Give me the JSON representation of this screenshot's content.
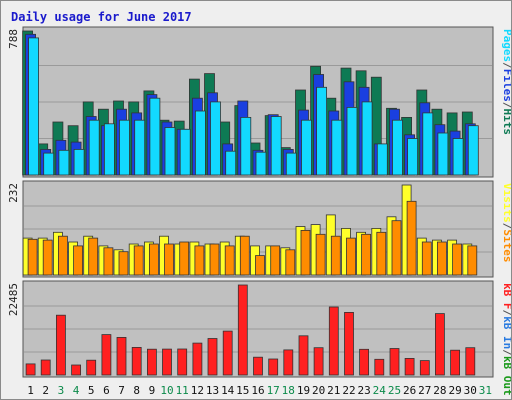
{
  "title": "Daily usage for June 2017",
  "colors": {
    "hits": "#0e7a54",
    "files": "#1a3fe0",
    "pages": "#12d9ff",
    "visits": "#ffff2a",
    "sites": "#ff8c00",
    "kb_f": "#ff2020",
    "kb_in": "#2a7be0",
    "kb_out": "#1a9a1a",
    "weekday_label": "#111111",
    "weekend_label": "#0b8a4a",
    "panel_bg": "#c0c0c0"
  },
  "legend": {
    "top": [
      {
        "text": "Pages",
        "color": "#12d9ff"
      },
      {
        "text": "/",
        "color": "#555555"
      },
      {
        "text": "Files",
        "color": "#1a3fe0"
      },
      {
        "text": "/",
        "color": "#555555"
      },
      {
        "text": "Hits",
        "color": "#0e7a54"
      }
    ],
    "mid": [
      {
        "text": "Visits",
        "color": "#ffff2a"
      },
      {
        "text": "/",
        "color": "#555555"
      },
      {
        "text": "Sites",
        "color": "#ff8c00"
      }
    ],
    "bot": [
      {
        "text": "kB F",
        "color": "#ff2020"
      },
      {
        "text": "/",
        "color": "#555555"
      },
      {
        "text": "kB In",
        "color": "#2a7be0"
      },
      {
        "text": "/",
        "color": "#555555"
      },
      {
        "text": "kB Out",
        "color": "#1a9a1a"
      }
    ]
  },
  "chart_data": {
    "type": "bar",
    "title": "Daily usage for June 2017",
    "categories": [
      "1",
      "2",
      "3",
      "4",
      "5",
      "6",
      "7",
      "8",
      "9",
      "10",
      "11",
      "12",
      "13",
      "14",
      "15",
      "16",
      "17",
      "18",
      "19",
      "20",
      "21",
      "22",
      "23",
      "24",
      "25",
      "26",
      "27",
      "28",
      "29",
      "30",
      "31"
    ],
    "weekend_days": [
      "3",
      "4",
      "10",
      "11",
      "17",
      "18",
      "24",
      "25",
      "31"
    ],
    "panels": [
      {
        "id": "hits-files-pages",
        "max_label": "788",
        "ylim": [
          0,
          788
        ],
        "series": [
          {
            "name": "Hits",
            "values": [
              788,
              170,
              290,
              270,
              400,
              360,
              405,
              400,
              460,
              300,
              295,
              525,
              555,
              290,
              380,
              175,
              325,
              150,
              465,
              595,
              420,
              585,
              570,
              535,
              365,
              315,
              465,
              360,
              340,
              345,
              0
            ]
          },
          {
            "name": "Files",
            "values": [
              770,
              140,
              190,
              180,
              320,
              270,
              360,
              340,
              440,
              290,
              250,
              420,
              450,
              170,
              405,
              135,
              330,
              140,
              355,
              550,
              350,
              510,
              480,
              170,
              360,
              220,
              395,
              275,
              240,
              280,
              0
            ]
          },
          {
            "name": "Pages",
            "values": [
              750,
              120,
              135,
              140,
              300,
              280,
              300,
              300,
              420,
              260,
              250,
              350,
              400,
              130,
              315,
              125,
              320,
              120,
              300,
              480,
              300,
              370,
              400,
              170,
              300,
              200,
              340,
              230,
              200,
              270,
              0
            ]
          }
        ]
      },
      {
        "id": "visits-sites",
        "max_label": "232",
        "ylim": [
          0,
          232
        ],
        "series": [
          {
            "name": "Visits",
            "values": [
              95,
              95,
              110,
              85,
              100,
              75,
              65,
              80,
              85,
              100,
              80,
              85,
              80,
              85,
              100,
              75,
              75,
              70,
              125,
              130,
              155,
              120,
              110,
              120,
              150,
              232,
              95,
              90,
              90,
              80,
              0
            ]
          },
          {
            "name": "Sites",
            "values": [
              92,
              90,
              100,
              75,
              95,
              70,
              60,
              75,
              80,
              80,
              85,
              75,
              80,
              75,
              100,
              50,
              75,
              65,
              115,
              105,
              100,
              95,
              105,
              110,
              140,
              190,
              85,
              85,
              80,
              75,
              0
            ]
          }
        ]
      },
      {
        "id": "kb",
        "max_label": "22485",
        "ylim": [
          0,
          22485
        ],
        "series": [
          {
            "name": "kB F",
            "values": [
              2770,
              3750,
              14950,
              2500,
              3710,
              10100,
              9390,
              6900,
              6450,
              6480,
              6490,
              7960,
              9110,
              10970,
              22485,
              4450,
              4000,
              6280,
              9800,
              6810,
              17000,
              15630,
              6420,
              3930,
              6610,
              4140,
              3610,
              15340,
              6190,
              6810,
              0
            ]
          }
        ]
      }
    ]
  }
}
